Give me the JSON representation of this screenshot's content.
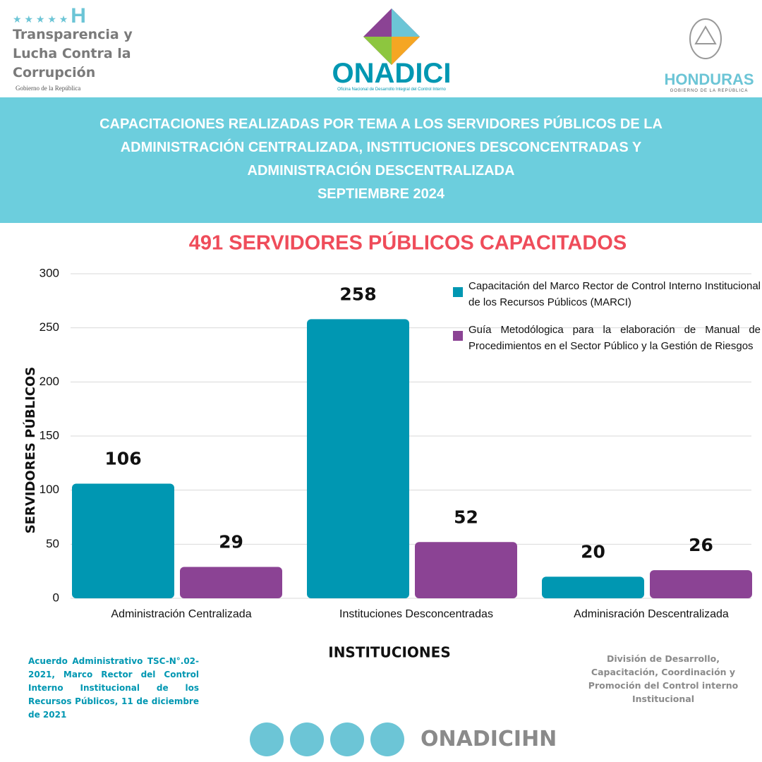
{
  "header": {
    "left_logo": [
      "Transparencia y",
      "Lucha Contra la",
      "Corrupción"
    ],
    "left_sub": "Gobierno de la República",
    "center_logo": "ONADICI",
    "center_sub": "Oficina Nacional de Desarrollo Integral del Control Interno",
    "right_logo": "HONDURAS",
    "right_sub": "GOBIERNO DE LA REPÚBLICA",
    "banner": [
      "CAPACITACIONES REALIZADAS POR TEMA A LOS SERVIDORES PÚBLICOS DE LA",
      "ADMINISTRACIÓN CENTRALIZADA,  INSTITUCIONES DESCONCENTRADAS Y",
      "ADMINISTRACIÓN DESCENTRALIZADA",
      "SEPTIEMBRE 2024"
    ]
  },
  "chart_data": {
    "type": "bar",
    "title": "491 SERVIDORES PÚBLICOS CAPACITADOS",
    "categories": [
      "Administración Centralizada",
      "Instituciones Desconcentradas",
      "Adminisración Descentralizada"
    ],
    "series": [
      {
        "name": "Capacitación del Marco Rector de Control Interno Institucional de los Recursos Públicos (MARCI)",
        "color": "#0097b2",
        "values": [
          106,
          258,
          20
        ]
      },
      {
        "name": "Guía Metodólogica para la elaboración de Manual de Procedimientos en el Sector Público y la Gestión de Riesgos",
        "color": "#8b4394",
        "values": [
          29,
          52,
          26
        ]
      }
    ],
    "ylim": [
      0,
      300
    ],
    "yticks": [
      0,
      50,
      100,
      150,
      200,
      250,
      300
    ],
    "grid": true,
    "xlabel": "INSTITUCIONES",
    "ylabel": "SERVIDORES PÚBLICOS",
    "legend": "top-right"
  },
  "footer": {
    "left_note": "Acuerdo Administrativo TSC-N°.02-2021, Marco Rector del Control Interno Institucional de los Recursos Públicos, 11 de diciembre de 2021",
    "right_note": "División de Desarrollo, Capacitación, Coordinación y Promoción del Control interno Institucional",
    "handle": "ONADICIHN"
  }
}
